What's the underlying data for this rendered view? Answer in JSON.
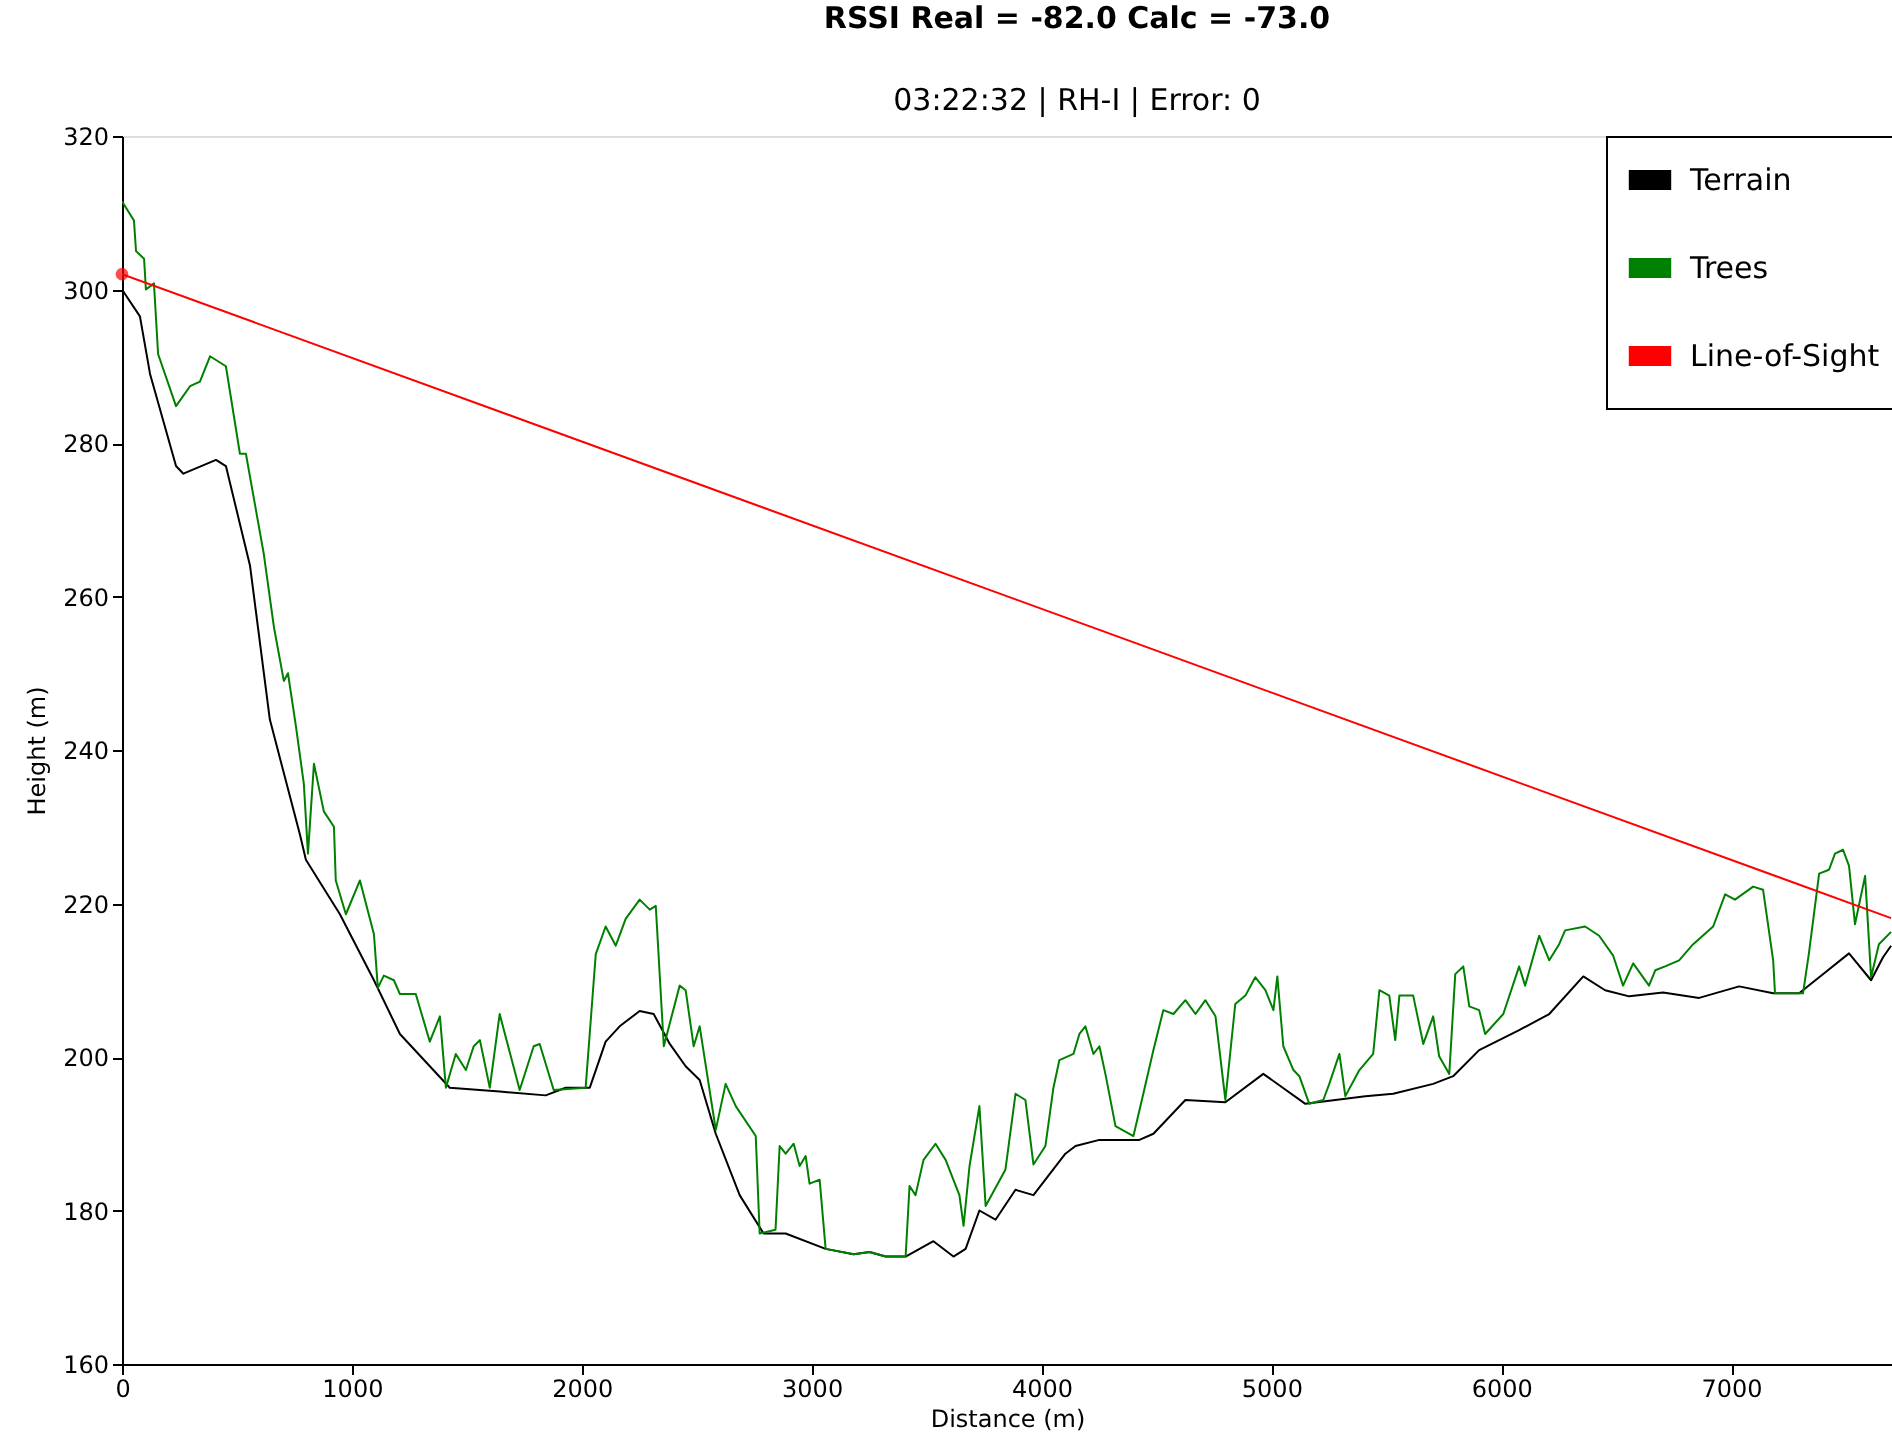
{
  "chart_data": {
    "type": "line",
    "title": "RSSI Real = -82.0 Calc = -73.0",
    "subtitle": "03:22:32 | RH-I | Error: 0",
    "xlabel": "Distance (m)",
    "ylabel": "Height (m)",
    "xlim": [
      0,
      7700
    ],
    "xticks": [
      0,
      1000,
      2000,
      3000,
      4000,
      5000,
      6000,
      7000
    ],
    "ylim": [
      160,
      320
    ],
    "yticks": [
      160,
      180,
      200,
      220,
      240,
      260,
      280,
      300,
      320
    ],
    "grid": false,
    "legend": "top right",
    "series": [
      {
        "name": "Terrain",
        "color": "#000000",
        "x": [
          0,
          78,
          122,
          235,
          267,
          409,
          452,
          557,
          643,
          704,
          774,
          800,
          948,
          1096,
          1209,
          1426,
          1643,
          1843,
          1930,
          2035,
          2104,
          2165,
          2252,
          2313,
          2383,
          2452,
          2513,
          2583,
          2687,
          2791,
          2887,
          3061,
          3183,
          3252,
          3322,
          3409,
          3530,
          3617,
          3670,
          3730,
          3800,
          3887,
          3965,
          4104,
          4148,
          4252,
          4426,
          4487,
          4626,
          4800,
          4965,
          5148,
          5409,
          5530,
          5704,
          5791,
          5904,
          6078,
          6209,
          6357,
          6452,
          6557,
          6704,
          6861,
          7035,
          7183,
          7296,
          7409,
          7513,
          7609,
          7661,
          7696
        ],
        "values": [
          300,
          296.5,
          289,
          277,
          276,
          277.8,
          277,
          264,
          244,
          237,
          229,
          225.7,
          218.6,
          210,
          203,
          196,
          195.5,
          195,
          196,
          196,
          202,
          204,
          206,
          205.6,
          201.7,
          198.8,
          197,
          190,
          182,
          177,
          177,
          175,
          174.3,
          174.6,
          174,
          174,
          176,
          174,
          175,
          180,
          178.8,
          182.7,
          182,
          187.4,
          188.4,
          189.2,
          189.2,
          190,
          194.4,
          194.1,
          197.8,
          193.9,
          194.9,
          195.2,
          196.5,
          197.5,
          200.9,
          203.5,
          205.6,
          210.5,
          208.7,
          207.9,
          208.4,
          207.7,
          209.2,
          208.3,
          208.3,
          211,
          213.5,
          210,
          213,
          214.5
        ]
      },
      {
        "name": "Trees",
        "color": "#008000",
        "x": [
          0,
          52,
          61,
          96,
          104,
          139,
          157,
          235,
          296,
          339,
          383,
          452,
          513,
          539,
          617,
          661,
          704,
          722,
          757,
          791,
          809,
          835,
          878,
          922,
          930,
          974,
          1035,
          1096,
          1113,
          1139,
          1183,
          1209,
          1278,
          1339,
          1383,
          1409,
          1452,
          1496,
          1530,
          1557,
          1600,
          1643,
          1730,
          1791,
          1817,
          1878,
          2017,
          2061,
          2104,
          2148,
          2191,
          2252,
          2296,
          2322,
          2357,
          2426,
          2452,
          2487,
          2513,
          2583,
          2626,
          2670,
          2757,
          2774,
          2843,
          2861,
          2887,
          2922,
          2948,
          2974,
          2991,
          3035,
          3061,
          3183,
          3252,
          3322,
          3409,
          3426,
          3452,
          3487,
          3539,
          3583,
          3643,
          3661,
          3687,
          3730,
          3757,
          3843,
          3887,
          3930,
          3965,
          4017,
          4052,
          4078,
          4139,
          4165,
          4191,
          4226,
          4252,
          4278,
          4322,
          4400,
          4443,
          4487,
          4530,
          4574,
          4626,
          4670,
          4713,
          4757,
          4800,
          4843,
          4887,
          4930,
          4974,
          5009,
          5026,
          5052,
          5096,
          5122,
          5165,
          5226,
          5252,
          5296,
          5322,
          5383,
          5443,
          5470,
          5513,
          5539,
          5557,
          5617,
          5661,
          5704,
          5730,
          5774,
          5800,
          5835,
          5861,
          5904,
          5930,
          6009,
          6078,
          6104,
          6165,
          6209,
          6252,
          6278,
          6365,
          6426,
          6487,
          6530,
          6574,
          6643,
          6670,
          6713,
          6774,
          6835,
          6922,
          6974,
          7017,
          7096,
          7139,
          7183,
          7191,
          7313,
          7339,
          7383,
          7426,
          7452,
          7487,
          7513,
          7539,
          7583,
          7609,
          7643,
          7696
        ],
        "values": [
          311.5,
          309,
          305,
          304,
          300,
          300.8,
          291.6,
          284.8,
          287.4,
          288,
          291.3,
          290,
          278.6,
          278.6,
          265.5,
          256,
          249,
          250,
          243,
          235.6,
          226.5,
          238.2,
          232,
          230,
          223,
          218.6,
          223,
          216,
          209,
          210.6,
          210,
          208.2,
          208.2,
          202,
          205.3,
          196,
          200.4,
          198.3,
          201.4,
          202.2,
          196,
          205.6,
          195.7,
          201.4,
          201.7,
          195.7,
          196,
          213.4,
          217,
          214.5,
          218,
          220.5,
          219.2,
          219.7,
          201.4,
          209.3,
          208.7,
          201.4,
          204,
          190.5,
          196.5,
          193.6,
          189.7,
          177,
          177.5,
          188.4,
          187.4,
          188.7,
          185.8,
          187.1,
          183.5,
          184,
          175,
          174.3,
          174.6,
          174,
          174,
          183.2,
          182,
          186.6,
          188.7,
          186.6,
          182,
          178,
          185.8,
          193.6,
          180.6,
          185.3,
          195.2,
          194.4,
          186,
          188.4,
          196,
          199.6,
          200.4,
          203,
          204,
          200.4,
          201.4,
          197.8,
          191,
          189.7,
          195.2,
          200.9,
          206.1,
          205.6,
          207.4,
          205.6,
          207.4,
          205.3,
          194.4,
          206.9,
          208,
          210.4,
          208.7,
          206.1,
          210.5,
          201.4,
          198.3,
          197.5,
          193.9,
          194.4,
          196.5,
          200.4,
          194.9,
          198.3,
          200.4,
          208.7,
          208,
          202.2,
          208,
          208,
          201.7,
          205.3,
          200.1,
          197.8,
          210.8,
          211.8,
          206.6,
          206.1,
          203,
          205.6,
          211.8,
          209.3,
          215.8,
          212.6,
          214.7,
          216.5,
          217,
          215.8,
          213.2,
          209.3,
          212.2,
          209.3,
          211.3,
          211.8,
          212.6,
          214.7,
          217,
          221.2,
          220.5,
          222.2,
          221.8,
          212.6,
          208.3,
          208.3,
          213.6,
          223.9,
          224.4,
          226.5,
          227,
          224.9,
          217.3,
          223.6,
          210.4,
          214.7,
          216.3
        ]
      },
      {
        "name": "Line-of-Sight",
        "color": "#ff0000",
        "x": [
          0,
          7696
        ],
        "values": [
          302,
          218.1
        ]
      },
      {
        "type": "scatter",
        "marker": "circle",
        "color": "#ff0000",
        "x": [
          0
        ],
        "values": [
          302
        ]
      }
    ]
  }
}
